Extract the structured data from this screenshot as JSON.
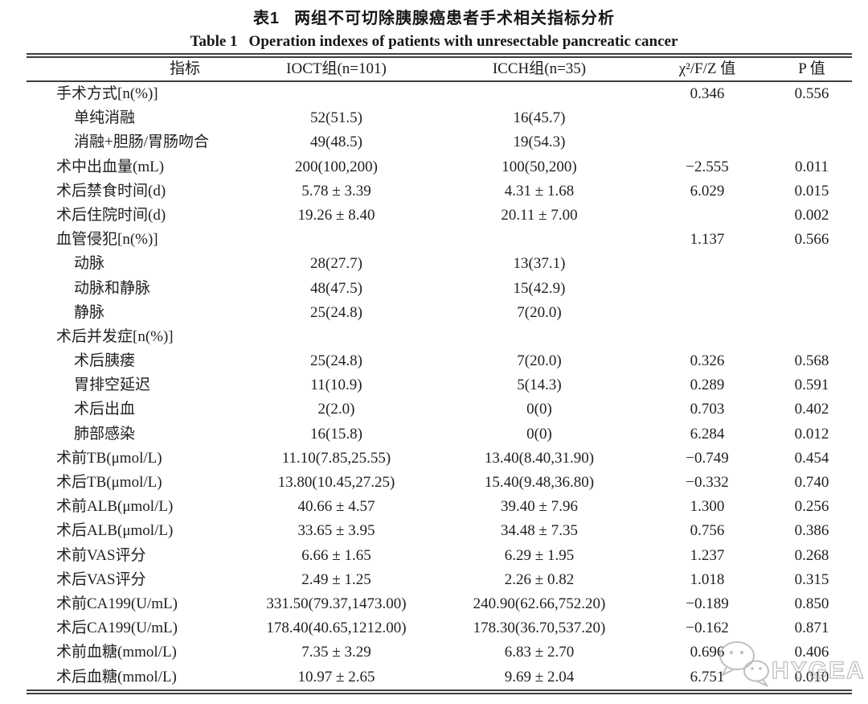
{
  "title": {
    "zh_label": "表1",
    "zh_text": "两组不可切除胰腺癌患者手术相关指标分析",
    "en_label": "Table 1",
    "en_text": "Operation indexes of patients with unresectable pancreatic cancer"
  },
  "table": {
    "columns": [
      "指标",
      "IOCT组(n=101)",
      "ICCH组(n=35)",
      "χ²/F/Z 值",
      "P 值"
    ],
    "rows": [
      {
        "label": "手术方式[n(%)]",
        "indent": false,
        "ioct": "",
        "icch": "",
        "stat": "0.346",
        "p": "0.556"
      },
      {
        "label": "单纯消融",
        "indent": true,
        "ioct": "52(51.5)",
        "icch": "16(45.7)",
        "stat": "",
        "p": ""
      },
      {
        "label": "消融+胆肠/胃肠吻合",
        "indent": true,
        "ioct": "49(48.5)",
        "icch": "19(54.3)",
        "stat": "",
        "p": ""
      },
      {
        "label": "术中出血量(mL)",
        "indent": false,
        "ioct": "200(100,200)",
        "icch": "100(50,200)",
        "stat": "−2.555",
        "p": "0.011"
      },
      {
        "label": "术后禁食时间(d)",
        "indent": false,
        "ioct": "5.78 ± 3.39",
        "icch": "4.31 ± 1.68",
        "stat": "6.029",
        "p": "0.015"
      },
      {
        "label": "术后住院时间(d)",
        "indent": false,
        "ioct": "19.26 ± 8.40",
        "icch": "20.11 ± 7.00",
        "stat": "",
        "p": "0.002"
      },
      {
        "label": "血管侵犯[n(%)]",
        "indent": false,
        "ioct": "",
        "icch": "",
        "stat": "1.137",
        "p": "0.566"
      },
      {
        "label": "动脉",
        "indent": true,
        "ioct": "28(27.7)",
        "icch": "13(37.1)",
        "stat": "",
        "p": ""
      },
      {
        "label": "动脉和静脉",
        "indent": true,
        "ioct": "48(47.5)",
        "icch": "15(42.9)",
        "stat": "",
        "p": ""
      },
      {
        "label": "静脉",
        "indent": true,
        "ioct": "25(24.8)",
        "icch": "7(20.0)",
        "stat": "",
        "p": ""
      },
      {
        "label": "术后并发症[n(%)]",
        "indent": false,
        "ioct": "",
        "icch": "",
        "stat": "",
        "p": ""
      },
      {
        "label": "术后胰瘘",
        "indent": true,
        "ioct": "25(24.8)",
        "icch": "7(20.0)",
        "stat": "0.326",
        "p": "0.568"
      },
      {
        "label": "胃排空延迟",
        "indent": true,
        "ioct": "11(10.9)",
        "icch": "5(14.3)",
        "stat": "0.289",
        "p": "0.591"
      },
      {
        "label": "术后出血",
        "indent": true,
        "ioct": "2(2.0)",
        "icch": "0(0)",
        "stat": "0.703",
        "p": "0.402"
      },
      {
        "label": "肺部感染",
        "indent": true,
        "ioct": "16(15.8)",
        "icch": "0(0)",
        "stat": "6.284",
        "p": "0.012"
      },
      {
        "label": "术前TB(μmol/L)",
        "indent": false,
        "ioct": "11.10(7.85,25.55)",
        "icch": "13.40(8.40,31.90)",
        "stat": "−0.749",
        "p": "0.454"
      },
      {
        "label": "术后TB(μmol/L)",
        "indent": false,
        "ioct": "13.80(10.45,27.25)",
        "icch": "15.40(9.48,36.80)",
        "stat": "−0.332",
        "p": "0.740"
      },
      {
        "label": "术前ALB(μmol/L)",
        "indent": false,
        "ioct": "40.66 ± 4.57",
        "icch": "39.40 ± 7.96",
        "stat": "1.300",
        "p": "0.256"
      },
      {
        "label": "术后ALB(μmol/L)",
        "indent": false,
        "ioct": "33.65 ± 3.95",
        "icch": "34.48 ± 7.35",
        "stat": "0.756",
        "p": "0.386"
      },
      {
        "label": "术前VAS评分",
        "indent": false,
        "ioct": "6.66 ± 1.65",
        "icch": "6.29 ± 1.95",
        "stat": "1.237",
        "p": "0.268"
      },
      {
        "label": "术后VAS评分",
        "indent": false,
        "ioct": "2.49 ± 1.25",
        "icch": "2.26 ± 0.82",
        "stat": "1.018",
        "p": "0.315"
      },
      {
        "label": "术前CA199(U/mL)",
        "indent": false,
        "ioct": "331.50(79.37,1473.00)",
        "icch": "240.90(62.66,752.20)",
        "stat": "−0.189",
        "p": "0.850"
      },
      {
        "label": "术后CA199(U/mL)",
        "indent": false,
        "ioct": "178.40(40.65,1212.00)",
        "icch": "178.30(36.70,537.20)",
        "stat": "−0.162",
        "p": "0.871"
      },
      {
        "label": "术前血糖(mmol/L)",
        "indent": false,
        "ioct": "7.35 ± 3.29",
        "icch": "6.83 ± 2.70",
        "stat": "0.696",
        "p": "0.406"
      },
      {
        "label": "术后血糖(mmol/L)",
        "indent": false,
        "ioct": "10.97 ± 2.65",
        "icch": "9.69 ± 2.04",
        "stat": "6.751",
        "p": "0.010"
      }
    ]
  },
  "watermark": {
    "text": "HYGEA",
    "icon": "wechat-bubbles-icon",
    "color": "#b4b4b4"
  },
  "colors": {
    "rule": "#3e3e3e",
    "text": "#1f1f1f",
    "background": "#ffffff"
  }
}
